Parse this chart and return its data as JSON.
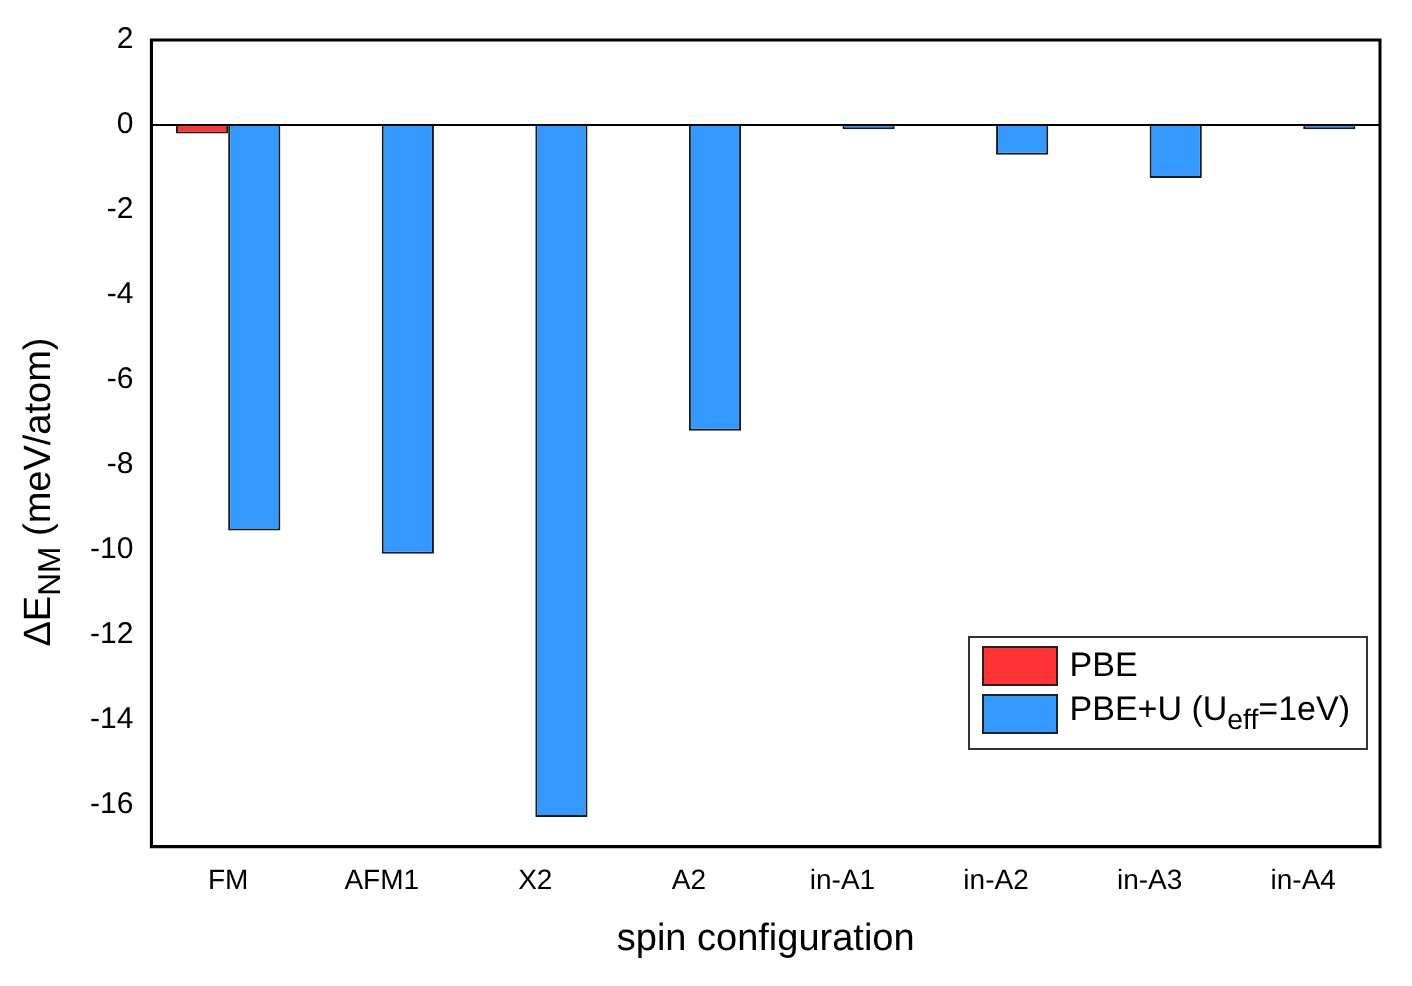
{
  "chart_data": {
    "type": "bar",
    "xlabel": "spin configuration",
    "ylabel": "ΔE$_{NM}$ (meV/atom)",
    "categories": [
      "FM",
      "AFM1",
      "X2",
      "A2",
      "in-A1",
      "in-A2",
      "in-A3",
      "in-A4"
    ],
    "series": [
      {
        "name": "PBE",
        "color": "#ff3333",
        "values": [
          -0.2,
          0,
          0,
          0,
          0,
          0,
          0,
          0
        ]
      },
      {
        "name": "PBE+U (U$_{eff}$=1eV)",
        "color": "#3399ff",
        "values": [
          -9.55,
          -10.1,
          -16.3,
          -7.2,
          -0.1,
          -0.7,
          -1.25,
          -0.1
        ]
      }
    ],
    "ylim": [
      -17,
      2
    ],
    "yticks": [
      2,
      0,
      -2,
      -4,
      -6,
      -8,
      -10,
      -12,
      -14,
      -16
    ],
    "ref_lines": [
      {
        "axis": "y",
        "value": 0,
        "color": "#000000"
      }
    ],
    "grid": false,
    "legend": "bottom right"
  }
}
